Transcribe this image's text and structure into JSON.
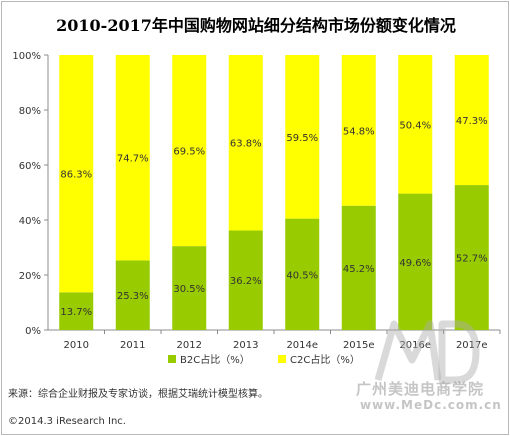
{
  "chart_data": {
    "type": "bar",
    "stacked": true,
    "title": "2010-2017年中国购物网站细分结构市场份额变化情况",
    "categories": [
      "2010",
      "2011",
      "2012",
      "2013",
      "2014e",
      "2015e",
      "2016e",
      "2017e"
    ],
    "series": [
      {
        "name": "B2C占比（%）",
        "values": [
          13.7,
          25.3,
          30.5,
          36.2,
          40.5,
          45.2,
          49.6,
          52.7
        ],
        "color": "#99cc00"
      },
      {
        "name": "C2C占比（%）",
        "values": [
          86.3,
          74.7,
          69.5,
          63.8,
          59.5,
          54.8,
          50.4,
          47.3
        ],
        "color": "#ffff00"
      }
    ],
    "data_labels": {
      "B2C": [
        "13.7%",
        "25.3%",
        "30.5%",
        "36.2%",
        "40.5%",
        "45.2%",
        "49.6%",
        "52.7%"
      ],
      "C2C": [
        "86.3%",
        "74.7%",
        "69.5%",
        "63.8%",
        "59.5%",
        "54.8%",
        "50.4%",
        "47.3%"
      ]
    },
    "ylim": [
      0,
      100
    ],
    "yticks": [
      "0%",
      "20%",
      "40%",
      "60%",
      "80%",
      "100%"
    ],
    "grid": false,
    "legend": "bottom-center"
  },
  "note": "来源：综合企业财报及专家访谈，根据艾瑞统计模型核算。",
  "copyright": "©2014.3 iResearch Inc.",
  "watermark": {
    "text_cn": "广州美迪电商学院",
    "url": "www.MeDc.com.cn"
  }
}
